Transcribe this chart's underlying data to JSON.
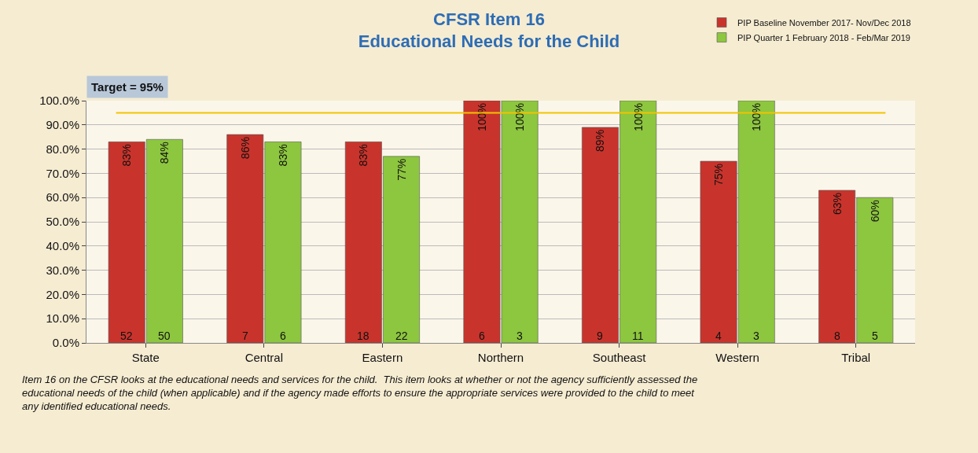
{
  "chart_data": {
    "type": "bar",
    "title": "CFSR Item 16\nEducational Needs for the Child",
    "categories": [
      "State",
      "Central",
      "Eastern",
      "Northern",
      "Southeast",
      "Western",
      "Tribal"
    ],
    "series": [
      {
        "name": "PIP Baseline November 2017- Nov/Dec 2018",
        "color": "#c8342c",
        "values": [
          83,
          86,
          83,
          100,
          89,
          75,
          63
        ],
        "value_labels": [
          "83%",
          "86%",
          "83%",
          "100%",
          "89%",
          "75%",
          "63%"
        ]
      },
      {
        "name": "PIP Quarter 1 February 2018 - Feb/Mar 2019",
        "color": "#8dc63f",
        "values": [
          84,
          83,
          77,
          100,
          100,
          100,
          60
        ],
        "value_labels": [
          "84%",
          "83%",
          "77%",
          "100%",
          "100%",
          "100%",
          "60%"
        ]
      }
    ],
    "ylim": [
      0,
      100
    ],
    "yticks": [
      {
        "value": 0,
        "label": "0.0%"
      },
      {
        "value": 10,
        "label": "10.0%"
      },
      {
        "value": 20,
        "label": "20.0%"
      },
      {
        "value": 30,
        "label": "30.0%"
      },
      {
        "value": 40,
        "label": "40.0%"
      },
      {
        "value": 50,
        "label": "50.0%"
      },
      {
        "value": 60,
        "label": "60.0%"
      },
      {
        "value": 70,
        "label": "70.0%"
      },
      {
        "value": 80,
        "label": "80.0%"
      },
      {
        "value": 90,
        "label": "90.0%"
      },
      {
        "value": 100,
        "label": "100.0%"
      }
    ],
    "grid": "y",
    "legend": "top right",
    "ref_lines": [
      {
        "axis": "y",
        "value": 95,
        "label": "Target = 95%",
        "color": "#f2c300"
      }
    ],
    "annotations": [
      {
        "text": "52",
        "x": "State",
        "y": 3
      },
      {
        "text": "50",
        "x": "State",
        "y": 3
      },
      {
        "text": "7",
        "x": "Central",
        "y": 3
      },
      {
        "text": "6",
        "x": "Central",
        "y": 3
      },
      {
        "text": "18",
        "x": "Eastern",
        "y": 3
      },
      {
        "text": "22",
        "x": "Eastern",
        "y": 3
      },
      {
        "text": "6",
        "x": "Northern",
        "y": 3
      },
      {
        "text": "3",
        "x": "Northern",
        "y": 3
      },
      {
        "text": "9",
        "x": "Southeast",
        "y": 3
      },
      {
        "text": "11",
        "x": "Southeast",
        "y": 3
      },
      {
        "text": "4",
        "x": "Western",
        "y": 3
      },
      {
        "text": "3",
        "x": "Western",
        "y": 3
      },
      {
        "text": "8",
        "x": "Tribal",
        "y": 3
      },
      {
        "text": "5",
        "x": "Tribal",
        "y": 3
      },
      "Item 16 on the CFSR looks at the educational needs and services for the child.  This item looks at whether or not the agency sufficiently assessed the educational needs of the child (when applicable) and if the agency made efforts to ensure the appropriate services were provided to the child to meet any identified educational needs."
    ]
  }
}
